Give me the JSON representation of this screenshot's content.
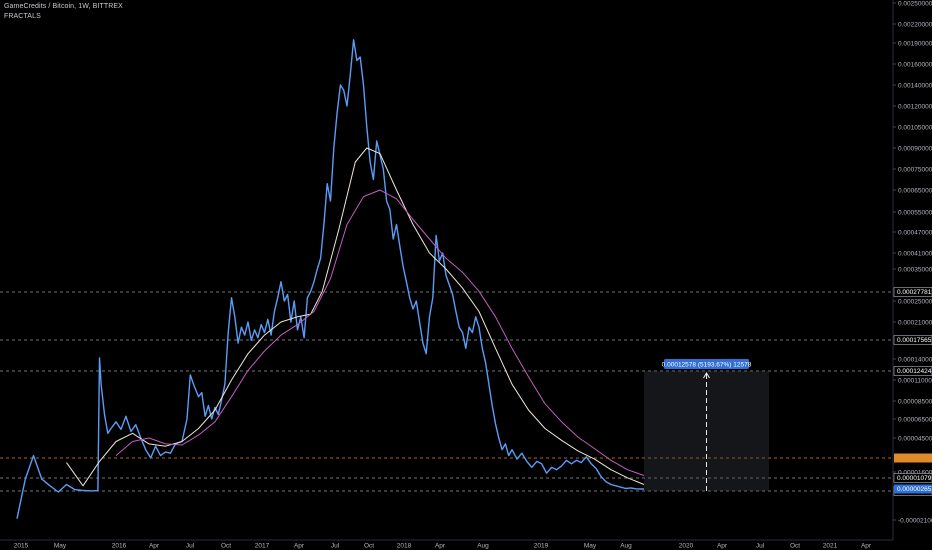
{
  "header": {
    "symbol_line": "GameCredits / Bitcoin, 1W, BITTREX",
    "indicator": "FRACTALS"
  },
  "colors": {
    "background": "#000000",
    "price": "#5b9cf6",
    "ma_fast": "#f0e6d8",
    "ma_slow": "#c45cc0",
    "level_line": "#9a9a9a",
    "orange_level": "#e08a2a",
    "badge_blue": "#2f6fd6"
  },
  "chart_data": {
    "type": "line",
    "x_ticks": [
      "2015",
      "May",
      "2016",
      "Apr",
      "Jul",
      "Oct",
      "2017",
      "Apr",
      "Jul",
      "Oct",
      "2018",
      "Apr",
      "Aug",
      "2019",
      "May",
      "Aug",
      "2020",
      "Apr",
      "Jul",
      "Oct",
      "2021",
      "Apr"
    ],
    "y_ticks": [
      "0.00250000",
      "0.00220000",
      "0.00190000",
      "0.00160000",
      "0.00140000",
      "0.00120000",
      "0.00105000",
      "0.00090000",
      "0.00075000",
      "0.00065000",
      "0.00055000",
      "0.00047000",
      "0.00041000",
      "0.00035000",
      "0.00025000",
      "0.00021000",
      "0.00014000",
      "0.00011000",
      "0.00008500",
      "0.00006500",
      "0.00004500",
      "0.00001600",
      "-0.00002100"
    ],
    "level_labels": [
      "0.00027781",
      "0.00017565",
      "0.00012424",
      "0.00001079",
      "0.00000040"
    ],
    "orange_label": "",
    "current_price_label": "0.00000265",
    "measure_label": "0.00012578 (5193.67%) 12578",
    "series": [
      {
        "role": "price",
        "points": [
          [
            0,
            -2e-05
          ],
          [
            0.5,
            1e-05
          ],
          [
            1,
            3e-05
          ],
          [
            1.5,
            1e-05
          ],
          [
            2,
            5e-06
          ],
          [
            2.5,
            0.0
          ],
          [
            3,
            6e-06
          ],
          [
            3.5,
            2e-06
          ],
          [
            4,
            1e-06
          ],
          [
            4.5,
            5e-07
          ],
          [
            4.9,
            8e-07
          ],
          [
            5.0,
            0.000142
          ],
          [
            5.1,
            0.000105
          ],
          [
            5.3,
            7e-05
          ],
          [
            5.5,
            5e-05
          ],
          [
            5.7,
            5.5e-05
          ],
          [
            6,
            6.2e-05
          ],
          [
            6.3,
            5.4e-05
          ],
          [
            6.6,
            6.8e-05
          ],
          [
            6.9,
            5.2e-05
          ],
          [
            7.2,
            5.9e-05
          ],
          [
            7.5,
            4.5e-05
          ],
          [
            7.8,
            3.5e-05
          ],
          [
            8.1,
            2.8e-05
          ],
          [
            8.4,
            3.8e-05
          ],
          [
            8.7,
            3e-05
          ],
          [
            9,
            3.3e-05
          ],
          [
            9.3,
            3.2e-05
          ],
          [
            9.6,
            4e-05
          ],
          [
            10,
            4.2e-05
          ],
          [
            10.3,
            6.5e-05
          ],
          [
            10.5,
            0.000118
          ],
          [
            10.7,
            0.000105
          ],
          [
            11,
            9e-05
          ],
          [
            11.2,
            9.5e-05
          ],
          [
            11.4,
            6.8e-05
          ],
          [
            11.6,
            8e-05
          ],
          [
            11.8,
            6.5e-05
          ],
          [
            12,
            7.8e-05
          ],
          [
            12.2,
            7e-05
          ],
          [
            12.4,
            8.6e-05
          ],
          [
            12.6,
            0.000105
          ],
          [
            12.8,
            0.00019
          ],
          [
            13.0,
            0.00026
          ],
          [
            13.2,
            0.00022
          ],
          [
            13.4,
            0.00017
          ],
          [
            13.6,
            0.0002
          ],
          [
            13.8,
            0.000185
          ],
          [
            14,
            0.00021
          ],
          [
            14.2,
            0.000175
          ],
          [
            14.4,
            0.000195
          ],
          [
            14.6,
            0.00018
          ],
          [
            14.8,
            0.000205
          ],
          [
            15,
            0.00019
          ],
          [
            15.2,
            0.000215
          ],
          [
            15.4,
            0.000185
          ],
          [
            15.6,
            0.00023
          ],
          [
            15.8,
            0.00026
          ],
          [
            16,
            0.00031
          ],
          [
            16.2,
            0.00025
          ],
          [
            16.4,
            0.00027
          ],
          [
            16.6,
            0.00021
          ],
          [
            16.8,
            0.00025
          ],
          [
            17,
            0.000195
          ],
          [
            17.2,
            0.00022
          ],
          [
            17.4,
            0.00018
          ],
          [
            17.6,
            0.00026
          ],
          [
            17.8,
            0.00028
          ],
          [
            18,
            0.00031
          ],
          [
            18.2,
            0.00035
          ],
          [
            18.4,
            0.00039
          ],
          [
            18.6,
            0.0005
          ],
          [
            18.8,
            0.00068
          ],
          [
            19,
            0.0006
          ],
          [
            19.2,
            0.0009
          ],
          [
            19.4,
            0.00115
          ],
          [
            19.6,
            0.0014
          ],
          [
            19.8,
            0.00135
          ],
          [
            20,
            0.0012
          ],
          [
            20.2,
            0.0015
          ],
          [
            20.4,
            0.00195
          ],
          [
            20.6,
            0.00165
          ],
          [
            20.8,
            0.0017
          ],
          [
            21.0,
            0.0014
          ],
          [
            21.2,
            0.00105
          ],
          [
            21.4,
            0.0008
          ],
          [
            21.6,
            0.0007
          ],
          [
            21.8,
            0.00095
          ],
          [
            22,
            0.00085
          ],
          [
            22.2,
            0.00075
          ],
          [
            22.4,
            0.0006
          ],
          [
            22.6,
            0.00056
          ],
          [
            22.8,
            0.00045
          ],
          [
            23,
            0.0005
          ],
          [
            23.2,
            0.00043
          ],
          [
            23.4,
            0.00036
          ],
          [
            23.6,
            0.00031
          ],
          [
            23.8,
            0.00026
          ],
          [
            24,
            0.000235
          ],
          [
            24.2,
            0.00025
          ],
          [
            24.4,
            0.00021
          ],
          [
            24.6,
            0.00017
          ],
          [
            24.8,
            0.00015
          ],
          [
            25,
            0.00022
          ],
          [
            25.2,
            0.00026
          ],
          [
            25.4,
            0.00046
          ],
          [
            25.6,
            0.00038
          ],
          [
            25.8,
            0.00041
          ],
          [
            26,
            0.00033
          ],
          [
            26.2,
            0.0003
          ],
          [
            26.4,
            0.00027
          ],
          [
            26.6,
            0.00023
          ],
          [
            26.8,
            0.0002
          ],
          [
            27,
            0.00019
          ],
          [
            27.2,
            0.00016
          ],
          [
            27.4,
            0.0002
          ],
          [
            27.6,
            0.00019
          ],
          [
            27.8,
            0.00022
          ],
          [
            28,
            0.0002
          ],
          [
            28.2,
            0.00016
          ],
          [
            28.4,
            0.000135
          ],
          [
            28.6,
            0.000105
          ],
          [
            28.8,
            8e-05
          ],
          [
            29,
            6e-05
          ],
          [
            29.2,
            4.5e-05
          ],
          [
            29.4,
            3.5e-05
          ],
          [
            29.6,
            4e-05
          ],
          [
            29.8,
            3e-05
          ],
          [
            30,
            3.5e-05
          ],
          [
            30.3,
            2.7e-05
          ],
          [
            30.6,
            3.2e-05
          ],
          [
            30.9,
            2.5e-05
          ],
          [
            31.2,
            2e-05
          ],
          [
            31.5,
            2.5e-05
          ],
          [
            31.8,
            2.3e-05
          ],
          [
            32.1,
            1.5e-05
          ],
          [
            32.4,
            2e-05
          ],
          [
            32.7,
            1.8e-05
          ],
          [
            33,
            2.1e-05
          ],
          [
            33.3,
            2.6e-05
          ],
          [
            33.6,
            2.3e-05
          ],
          [
            33.9,
            2.6e-05
          ],
          [
            34.2,
            2.4e-05
          ],
          [
            34.5,
            2.9e-05
          ],
          [
            34.8,
            2.3e-05
          ],
          [
            35.1,
            1.9e-05
          ],
          [
            35.4,
            1.2e-05
          ],
          [
            35.7,
            8e-06
          ],
          [
            36,
            6e-06
          ],
          [
            36.3,
            5e-06
          ],
          [
            36.6,
            4e-06
          ],
          [
            36.9,
            3e-06
          ],
          [
            37.2,
            3.5e-06
          ],
          [
            37.5,
            2.8e-06
          ],
          [
            37.8,
            2.6e-06
          ],
          [
            38.0,
            2.6e-06
          ]
        ]
      },
      {
        "role": "ma_fast",
        "points": [
          [
            3,
            2.4e-05
          ],
          [
            4,
            5e-06
          ],
          [
            5,
            2.5e-05
          ],
          [
            6,
            4.2e-05
          ],
          [
            7,
            5e-05
          ],
          [
            8,
            4e-05
          ],
          [
            9,
            3.8e-05
          ],
          [
            10,
            4.2e-05
          ],
          [
            11,
            5.5e-05
          ],
          [
            12,
            7.5e-05
          ],
          [
            13,
            0.00011
          ],
          [
            14,
            0.00015
          ],
          [
            15,
            0.000185
          ],
          [
            16,
            0.00021
          ],
          [
            17,
            0.00022
          ],
          [
            17.8,
            0.000225
          ],
          [
            18.5,
            0.00028
          ],
          [
            19.5,
            0.00048
          ],
          [
            20.5,
            0.0008
          ],
          [
            21.2,
            0.0009
          ],
          [
            22,
            0.00086
          ],
          [
            23,
            0.00065
          ],
          [
            24,
            0.0005
          ],
          [
            25,
            0.00041
          ],
          [
            26,
            0.00035
          ],
          [
            27,
            0.00029
          ],
          [
            28,
            0.00023
          ],
          [
            29,
            0.00016
          ],
          [
            30,
            0.000105
          ],
          [
            31,
            7.5e-05
          ],
          [
            32,
            5.5e-05
          ],
          [
            33,
            4.3e-05
          ],
          [
            34,
            3.4e-05
          ],
          [
            35,
            2.7e-05
          ],
          [
            36,
            1.8e-05
          ],
          [
            37,
            1.1e-05
          ],
          [
            38,
            6e-06
          ]
        ]
      },
      {
        "role": "ma_slow",
        "points": [
          [
            6,
            3e-05
          ],
          [
            7,
            4.2e-05
          ],
          [
            8,
            4.5e-05
          ],
          [
            9,
            4e-05
          ],
          [
            10,
            3.9e-05
          ],
          [
            11,
            4.8e-05
          ],
          [
            12,
            6.2e-05
          ],
          [
            13,
            9e-05
          ],
          [
            14,
            0.000125
          ],
          [
            15,
            0.000155
          ],
          [
            16,
            0.000185
          ],
          [
            17,
            0.000205
          ],
          [
            18,
            0.00023
          ],
          [
            19,
            0.00032
          ],
          [
            20,
            0.0005
          ],
          [
            21,
            0.00062
          ],
          [
            22,
            0.00065
          ],
          [
            23,
            0.00061
          ],
          [
            24,
            0.00052
          ],
          [
            25,
            0.00045
          ],
          [
            26,
            0.00039
          ],
          [
            27,
            0.00034
          ],
          [
            28,
            0.00028
          ],
          [
            29,
            0.00022
          ],
          [
            30,
            0.00016
          ],
          [
            31,
            0.000115
          ],
          [
            32,
            8.2e-05
          ],
          [
            33,
            6.2e-05
          ],
          [
            34,
            4.6e-05
          ],
          [
            35,
            3.6e-05
          ],
          [
            36,
            2.6e-05
          ],
          [
            37,
            1.8e-05
          ],
          [
            38,
            1.3e-05
          ]
        ]
      }
    ]
  }
}
